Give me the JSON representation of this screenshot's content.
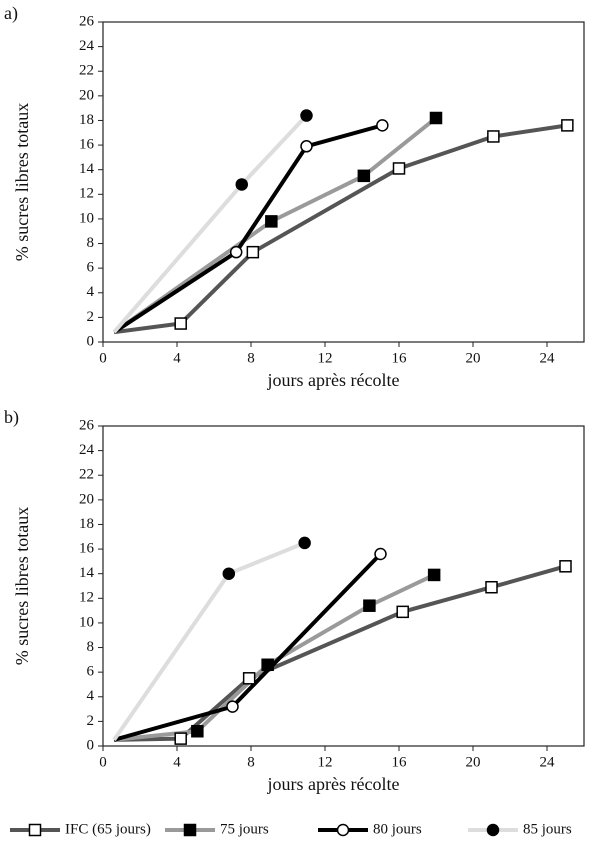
{
  "chart_data": [
    {
      "type": "line",
      "panel": "a)",
      "ylabel": "% sucres libres totaux",
      "xlabel": "jours après récolte",
      "xlim": [
        0,
        26
      ],
      "xticks": [
        0,
        4,
        8,
        12,
        16,
        20,
        24
      ],
      "ylim": [
        0,
        26
      ],
      "yticks": [
        0,
        2,
        4,
        6,
        8,
        10,
        12,
        14,
        16,
        18,
        20,
        22,
        24,
        26
      ],
      "legend": "bottom",
      "series": [
        {
          "name": "IFC (65 jours)",
          "color": "#555555",
          "marker": "square",
          "marker_fill": "#ffffff",
          "x": [
            0.6,
            4.2,
            8.1,
            16,
            21.1,
            25.1
          ],
          "values": [
            0.8,
            1.5,
            7.3,
            14.1,
            16.7,
            17.6
          ]
        },
        {
          "name": "75 jours",
          "color": "#9a9a9a",
          "marker": "square",
          "marker_fill": "#000000",
          "x": [
            0.6,
            9.1,
            14.1,
            18
          ],
          "values": [
            0.8,
            9.8,
            13.5,
            18.2
          ]
        },
        {
          "name": "80 jours",
          "color": "#000000",
          "marker": "circle",
          "marker_fill": "#ffffff",
          "x": [
            0.6,
            7.2,
            11,
            15.1
          ],
          "values": [
            0.8,
            7.3,
            15.9,
            17.6
          ]
        },
        {
          "name": "85 jours",
          "color": "#dddddd",
          "marker": "circle",
          "marker_fill": "#000000",
          "x": [
            0.6,
            7.5,
            11
          ],
          "values": [
            0.8,
            12.8,
            18.4
          ]
        }
      ]
    },
    {
      "type": "line",
      "panel": "b)",
      "ylabel": "% sucres libres totaux",
      "xlabel": "jours après récolte",
      "xlim": [
        0,
        26
      ],
      "xticks": [
        0,
        4,
        8,
        12,
        16,
        20,
        24
      ],
      "ylim": [
        0,
        26
      ],
      "yticks": [
        0,
        2,
        4,
        6,
        8,
        10,
        12,
        14,
        16,
        18,
        20,
        22,
        24,
        26
      ],
      "series": [
        {
          "color": "#555555",
          "marker": "square",
          "marker_fill": "#ffffff",
          "x": [
            0.6,
            4.2,
            7.9,
            16.2,
            21,
            25
          ],
          "values": [
            0.5,
            0.6,
            5.5,
            10.9,
            12.9,
            14.6
          ]
        },
        {
          "color": "#9a9a9a",
          "marker": "square",
          "marker_fill": "#000000",
          "x": [
            0.6,
            5.1,
            8.9,
            14.4,
            17.9
          ],
          "values": [
            0.5,
            1.2,
            6.6,
            11.4,
            13.9
          ]
        },
        {
          "color": "#000000",
          "marker": "circle",
          "marker_fill": "#ffffff",
          "x": [
            0.6,
            7,
            15
          ],
          "values": [
            0.5,
            3.2,
            15.6
          ]
        },
        {
          "color": "#dddddd",
          "marker": "circle",
          "marker_fill": "#000000",
          "x": [
            0.6,
            6.8,
            10.9
          ],
          "values": [
            0.5,
            14,
            16.5
          ]
        }
      ]
    }
  ]
}
